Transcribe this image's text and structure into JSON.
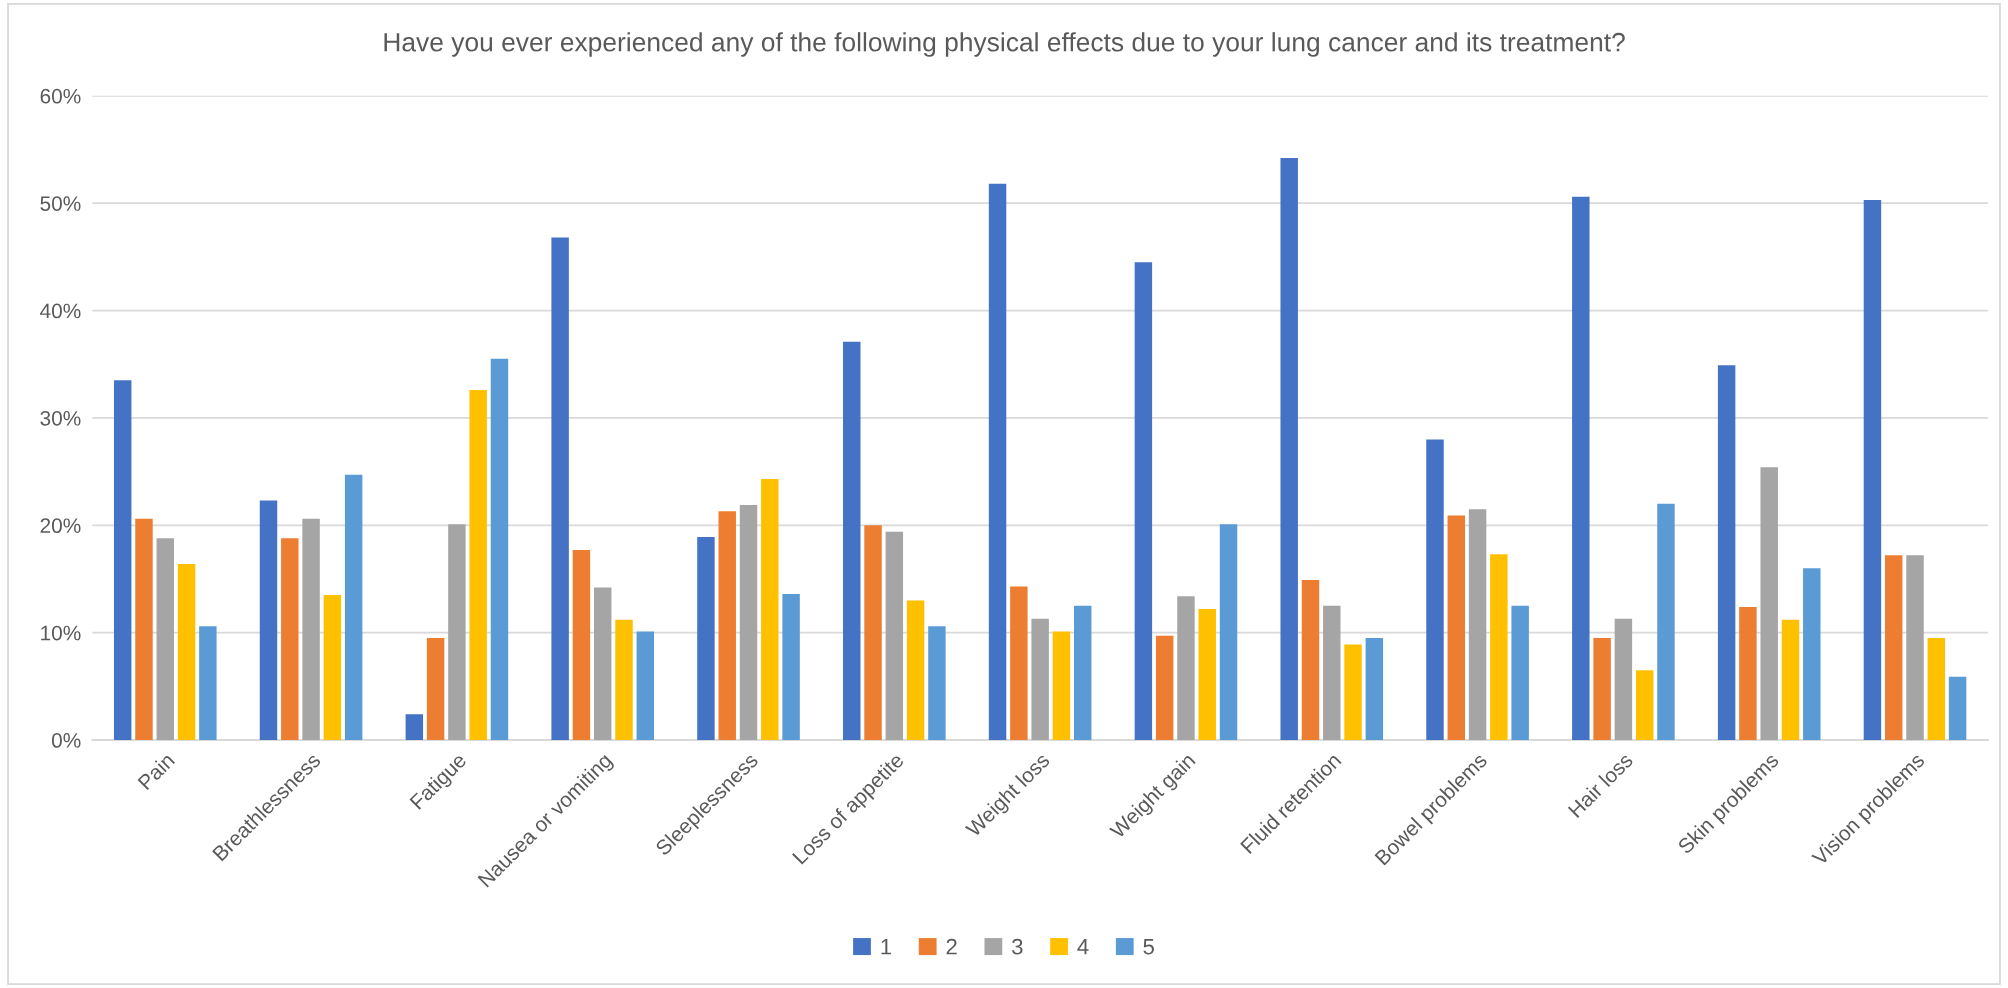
{
  "chart_data": {
    "type": "bar",
    "title": "Have you ever experienced any of the following physical effects due to your lung cancer and its treatment?",
    "categories": [
      "Pain",
      "Breathlessness",
      "Fatigue",
      "Nausea or vomiting",
      "Sleeplessness",
      "Loss of appetite",
      "Weight loss",
      "Weight gain",
      "Fluid retention",
      "Bowel problems",
      "Hair loss",
      "Skin problems",
      "Vision problems"
    ],
    "series": [
      {
        "name": "1",
        "color": "#4472c4",
        "values": [
          33.5,
          22.3,
          2.4,
          46.8,
          18.9,
          37.1,
          51.8,
          44.5,
          54.2,
          28.0,
          50.6,
          34.9,
          50.3
        ]
      },
      {
        "name": "2",
        "color": "#ed7d31",
        "values": [
          20.6,
          18.8,
          9.5,
          17.7,
          21.3,
          20.0,
          14.3,
          9.7,
          14.9,
          20.9,
          9.5,
          12.4,
          17.2
        ]
      },
      {
        "name": "3",
        "color": "#a5a5a5",
        "values": [
          18.8,
          20.6,
          20.1,
          14.2,
          21.9,
          19.4,
          11.3,
          13.4,
          12.5,
          21.5,
          11.3,
          25.4,
          17.2
        ]
      },
      {
        "name": "4",
        "color": "#ffc000",
        "values": [
          16.4,
          13.5,
          32.6,
          11.2,
          24.3,
          13.0,
          10.1,
          12.2,
          8.9,
          17.3,
          6.5,
          11.2,
          9.5
        ]
      },
      {
        "name": "5",
        "color": "#5b9bd5",
        "values": [
          10.6,
          24.7,
          35.5,
          10.1,
          13.6,
          10.6,
          12.5,
          20.1,
          9.5,
          12.5,
          22.0,
          16.0,
          5.9
        ]
      }
    ],
    "ylim": [
      0,
      60
    ],
    "yticks": [
      {
        "value": 0,
        "label": "0%"
      },
      {
        "value": 10,
        "label": "10%"
      },
      {
        "value": 20,
        "label": "20%"
      },
      {
        "value": 30,
        "label": "30%"
      },
      {
        "value": 40,
        "label": "40%"
      },
      {
        "value": 50,
        "label": "50%"
      },
      {
        "value": 60,
        "label": "60%"
      }
    ],
    "grid": "y",
    "legend": "bottom"
  }
}
